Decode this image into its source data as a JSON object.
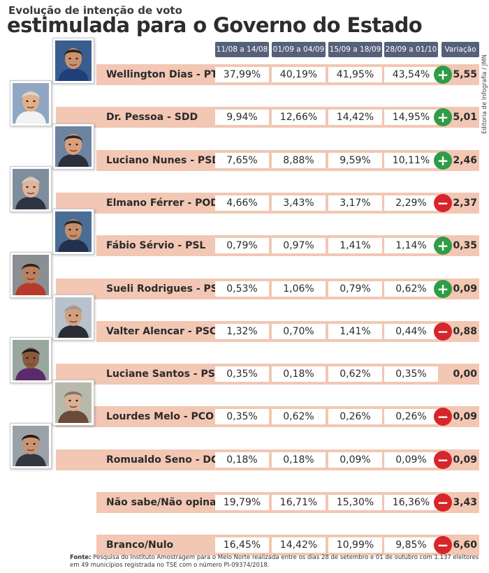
{
  "header": {
    "subtitle": "Evolução de intenção de voto",
    "title": "estimulada para o Governo do Estado",
    "credit": "Editoria de Infografia / JMN"
  },
  "columns": [
    "11/08 a 14/08",
    "01/09 a 04/09",
    "15/09 a 18/09",
    "28/09 a 01/10",
    "Variação"
  ],
  "chart_data": {
    "type": "table",
    "title": "Evolução de intenção de voto estimulada para o Governo do Estado",
    "columns": [
      "11/08 a 14/08",
      "01/09 a 04/09",
      "15/09 a 18/09",
      "28/09 a 01/10",
      "Variação"
    ],
    "rows": [
      {
        "name": "Wellington Dias - PT",
        "values": [
          "37,99%",
          "40,19%",
          "41,95%",
          "43,54%"
        ],
        "change": "+",
        "variation": "5,55"
      },
      {
        "name": "Dr. Pessoa - SDD",
        "values": [
          "9,94%",
          "12,66%",
          "14,42%",
          "14,95%"
        ],
        "change": "+",
        "variation": "5,01"
      },
      {
        "name": "Luciano Nunes - PSDB",
        "values": [
          "7,65%",
          "8,88%",
          "9,59%",
          "10,11%"
        ],
        "change": "+",
        "variation": "2,46"
      },
      {
        "name": "Elmano Férrer - POD",
        "values": [
          "4,66%",
          "3,43%",
          "3,17%",
          "2,29%"
        ],
        "change": "−",
        "variation": "2,37"
      },
      {
        "name": "Fábio Sérvio - PSL",
        "values": [
          "0,79%",
          "0,97%",
          "1,41%",
          "1,14%"
        ],
        "change": "+",
        "variation": "0,35"
      },
      {
        "name": "Sueli Rodrigues - PSOL",
        "values": [
          "0,53%",
          "1,06%",
          "0,79%",
          "0,62%"
        ],
        "change": "+",
        "variation": "0,09"
      },
      {
        "name": "Valter Alencar - PSC",
        "values": [
          "1,32%",
          "0,70%",
          "1,41%",
          "0,44%"
        ],
        "change": "−",
        "variation": "0,88"
      },
      {
        "name": "Luciane Santos - PSTU",
        "values": [
          "0,35%",
          "0,18%",
          "0,62%",
          "0,35%"
        ],
        "change": "",
        "variation": "0,00"
      },
      {
        "name": "Lourdes Melo - PCO",
        "values": [
          "0,35%",
          "0,62%",
          "0,26%",
          "0,26%"
        ],
        "change": "−",
        "variation": "0,09"
      },
      {
        "name": "Romualdo Seno - DC",
        "values": [
          "0,18%",
          "0,18%",
          "0,09%",
          "0,09%"
        ],
        "change": "−",
        "variation": "0,09"
      },
      {
        "name": "Não sabe/Não opina",
        "values": [
          "19,79%",
          "16,71%",
          "15,30%",
          "16,36%"
        ],
        "change": "−",
        "variation": "3,43"
      },
      {
        "name": "Branco/Nulo",
        "values": [
          "16,45%",
          "14,42%",
          "10,99%",
          "9,85%"
        ],
        "change": "−",
        "variation": "6,60"
      }
    ]
  },
  "colors": {
    "header_bg": "#55607a",
    "row_bar": "#f2c7b4",
    "increase": "#2f9c47",
    "decrease": "#d6262b"
  },
  "source": {
    "label": "Fonte:",
    "text": "Pesquisa do Instituto Amostragem para o Meio Norte realizada entre os dias 28 de setembro e 01 de outubro com 1.137 eleitores em 49 municípios registrada no TSE com o número PI-09374/2018."
  }
}
